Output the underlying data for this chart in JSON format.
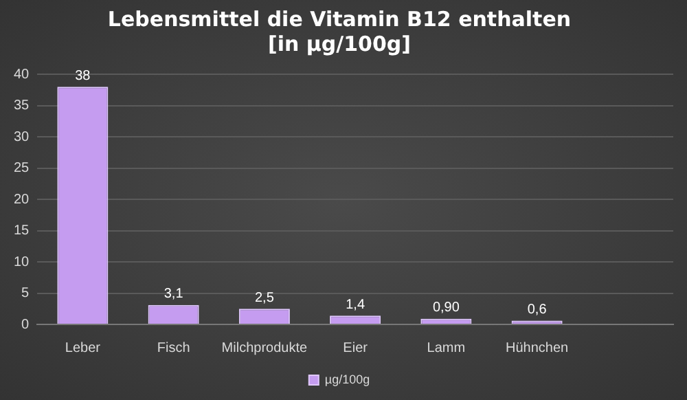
{
  "chart_data": {
    "type": "bar",
    "title": "Lebensmittel die Vitamin B12 enthalten\n[in µg/100g]",
    "categories": [
      "Leber",
      "Fisch",
      "Milchprodukte",
      "Eier",
      "Lamm",
      "Hühnchen",
      null
    ],
    "series": [
      {
        "name": "µg/100g",
        "color": "#c59cf0",
        "values": [
          38,
          3.1,
          2.5,
          1.4,
          0.9,
          0.6,
          null
        ],
        "value_labels": [
          "38",
          "3,1",
          "2,5",
          "1,4",
          "0,90",
          "0,6",
          null
        ]
      }
    ],
    "ylim": [
      0,
      40
    ],
    "yticks": [
      0,
      5,
      10,
      15,
      20,
      25,
      30,
      35,
      40
    ],
    "grid": "y",
    "legend": "bottom"
  }
}
